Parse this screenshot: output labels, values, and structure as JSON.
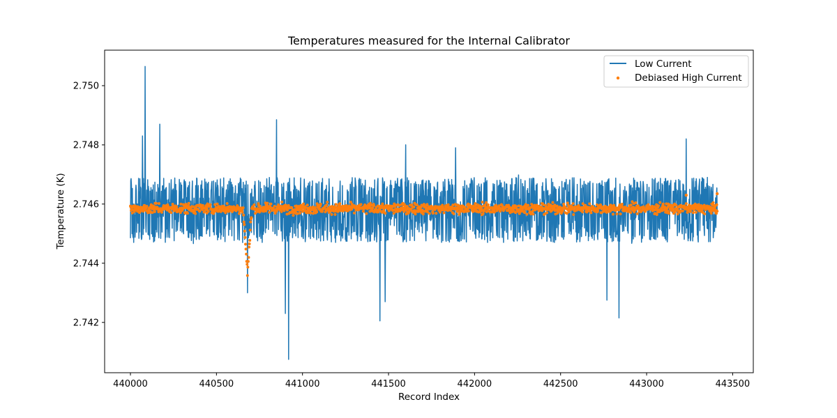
{
  "chart_data": {
    "type": "line",
    "title": "Temperatures measured for the Internal Calibrator",
    "xlabel": "Record Index",
    "ylabel": "Temperature (K)",
    "xlim": [
      439850,
      443620
    ],
    "ylim": [
      2.7403,
      2.7512
    ],
    "x_ticks": [
      440000,
      440500,
      441000,
      441500,
      442000,
      442500,
      443000,
      443500
    ],
    "y_ticks": [
      2.742,
      2.744,
      2.746,
      2.748,
      2.75
    ],
    "x_tick_labels": [
      "440000",
      "440500",
      "441000",
      "441500",
      "442000",
      "442500",
      "443000",
      "443500"
    ],
    "y_tick_labels": [
      "2.742",
      "2.744",
      "2.746",
      "2.748",
      "2.750"
    ],
    "legend_position": "upper right",
    "series": [
      {
        "name": "Low Current",
        "kind": "line",
        "color": "#1f77b4",
        "x_start": 440000,
        "x_end": 443410,
        "baseline": 2.7458,
        "features": [
          {
            "x": 440085,
            "y": 2.75065
          },
          {
            "x": 440070,
            "y": 2.7483
          },
          {
            "x": 440170,
            "y": 2.7487
          },
          {
            "x": 440850,
            "y": 2.74885
          },
          {
            "x": 440920,
            "y": 2.74075
          },
          {
            "x": 440900,
            "y": 2.7423
          },
          {
            "x": 440680,
            "y": 2.743
          },
          {
            "x": 441450,
            "y": 2.74205
          },
          {
            "x": 441480,
            "y": 2.7427
          },
          {
            "x": 442840,
            "y": 2.74215
          },
          {
            "x": 442770,
            "y": 2.74275
          },
          {
            "x": 443230,
            "y": 2.7482
          },
          {
            "x": 441890,
            "y": 2.7479
          },
          {
            "x": 441600,
            "y": 2.748
          }
        ]
      },
      {
        "name": "Debiased High Current",
        "kind": "scatter",
        "color": "#ff7f0e",
        "x_start": 440000,
        "x_end": 443410,
        "baseline": 2.74585,
        "dip_x": 440680,
        "dip_min": 2.7437,
        "end_points": [
          {
            "x": 443410,
            "y": 2.74635
          },
          {
            "x": 443230,
            "y": 2.7463
          }
        ]
      }
    ]
  }
}
